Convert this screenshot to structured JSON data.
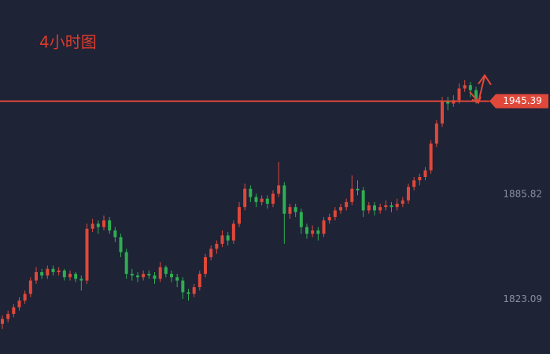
{
  "chart_data": {
    "type": "candlestick",
    "title": "4小时图",
    "up_color": "#e0483a",
    "down_color": "#2fae52",
    "ylim": [
      1794,
      2006
    ],
    "yticks": [
      1885.82,
      1823.09
    ],
    "last_price": 1945.39,
    "ohlc": [
      [
        1812,
        1817,
        1809,
        1815
      ],
      [
        1815,
        1820,
        1813,
        1818
      ],
      [
        1818,
        1824,
        1816,
        1822
      ],
      [
        1822,
        1828,
        1820,
        1826
      ],
      [
        1826,
        1832,
        1824,
        1830
      ],
      [
        1830,
        1840,
        1828,
        1838
      ],
      [
        1838,
        1846,
        1836,
        1843
      ],
      [
        1843,
        1845,
        1839,
        1841
      ],
      [
        1841,
        1847,
        1839,
        1845
      ],
      [
        1845,
        1847,
        1841,
        1843
      ],
      [
        1843,
        1846,
        1841,
        1844
      ],
      [
        1844,
        1845,
        1838,
        1840
      ],
      [
        1840,
        1844,
        1838,
        1842
      ],
      [
        1842,
        1843,
        1837,
        1839
      ],
      [
        1839,
        1841,
        1832,
        1838
      ],
      [
        1838,
        1872,
        1836,
        1869
      ],
      [
        1869,
        1875,
        1867,
        1872
      ],
      [
        1872,
        1874,
        1866,
        1870
      ],
      [
        1870,
        1877,
        1868,
        1874
      ],
      [
        1874,
        1876,
        1866,
        1868
      ],
      [
        1868,
        1870,
        1861,
        1864
      ],
      [
        1864,
        1866,
        1852,
        1855
      ],
      [
        1855,
        1857,
        1839,
        1842
      ],
      [
        1842,
        1845,
        1838,
        1841
      ],
      [
        1841,
        1843,
        1837,
        1840
      ],
      [
        1840,
        1844,
        1838,
        1842
      ],
      [
        1842,
        1844,
        1839,
        1841
      ],
      [
        1841,
        1843,
        1836,
        1839
      ],
      [
        1839,
        1849,
        1837,
        1846
      ],
      [
        1846,
        1847,
        1840,
        1842
      ],
      [
        1842,
        1844,
        1837,
        1840
      ],
      [
        1840,
        1842,
        1834,
        1838
      ],
      [
        1838,
        1840,
        1827,
        1831
      ],
      [
        1831,
        1833,
        1826,
        1830
      ],
      [
        1830,
        1836,
        1828,
        1834
      ],
      [
        1834,
        1844,
        1832,
        1842
      ],
      [
        1842,
        1854,
        1840,
        1852
      ],
      [
        1852,
        1859,
        1850,
        1857
      ],
      [
        1857,
        1862,
        1854,
        1860
      ],
      [
        1860,
        1868,
        1858,
        1865
      ],
      [
        1865,
        1867,
        1859,
        1862
      ],
      [
        1862,
        1874,
        1860,
        1872
      ],
      [
        1872,
        1885,
        1870,
        1882
      ],
      [
        1882,
        1896,
        1880,
        1893
      ],
      [
        1893,
        1895,
        1885,
        1888
      ],
      [
        1888,
        1890,
        1882,
        1885
      ],
      [
        1885,
        1889,
        1883,
        1887
      ],
      [
        1887,
        1889,
        1881,
        1884
      ],
      [
        1884,
        1892,
        1882,
        1890
      ],
      [
        1890,
        1909,
        1888,
        1895
      ],
      [
        1895,
        1897,
        1860,
        1878
      ],
      [
        1878,
        1884,
        1875,
        1882
      ],
      [
        1882,
        1884,
        1876,
        1879
      ],
      [
        1879,
        1881,
        1866,
        1870
      ],
      [
        1870,
        1872,
        1863,
        1866
      ],
      [
        1866,
        1871,
        1864,
        1868
      ],
      [
        1868,
        1870,
        1862,
        1866
      ],
      [
        1866,
        1876,
        1864,
        1874
      ],
      [
        1874,
        1878,
        1872,
        1876
      ],
      [
        1876,
        1882,
        1874,
        1880
      ],
      [
        1880,
        1884,
        1878,
        1882
      ],
      [
        1882,
        1887,
        1880,
        1885
      ],
      [
        1885,
        1901,
        1883,
        1893
      ],
      [
        1893,
        1898,
        1889,
        1892
      ],
      [
        1892,
        1894,
        1876,
        1880
      ],
      [
        1880,
        1885,
        1878,
        1883
      ],
      [
        1883,
        1885,
        1877,
        1880
      ],
      [
        1880,
        1884,
        1878,
        1882
      ],
      [
        1882,
        1886,
        1880,
        1883
      ],
      [
        1883,
        1885,
        1879,
        1882
      ],
      [
        1882,
        1887,
        1880,
        1884
      ],
      [
        1884,
        1888,
        1882,
        1886
      ],
      [
        1886,
        1896,
        1884,
        1894
      ],
      [
        1894,
        1900,
        1892,
        1898
      ],
      [
        1898,
        1902,
        1895,
        1900
      ],
      [
        1900,
        1906,
        1898,
        1904
      ],
      [
        1904,
        1922,
        1902,
        1920
      ],
      [
        1920,
        1934,
        1918,
        1932
      ],
      [
        1932,
        1948,
        1930,
        1945
      ],
      [
        1945,
        1948,
        1940,
        1944
      ],
      [
        1944,
        1949,
        1942,
        1946
      ],
      [
        1946,
        1956,
        1944,
        1953
      ],
      [
        1953,
        1958,
        1951,
        1955
      ],
      [
        1955,
        1957,
        1948,
        1952
      ],
      [
        1952,
        1954,
        1944,
        1946
      ]
    ]
  }
}
